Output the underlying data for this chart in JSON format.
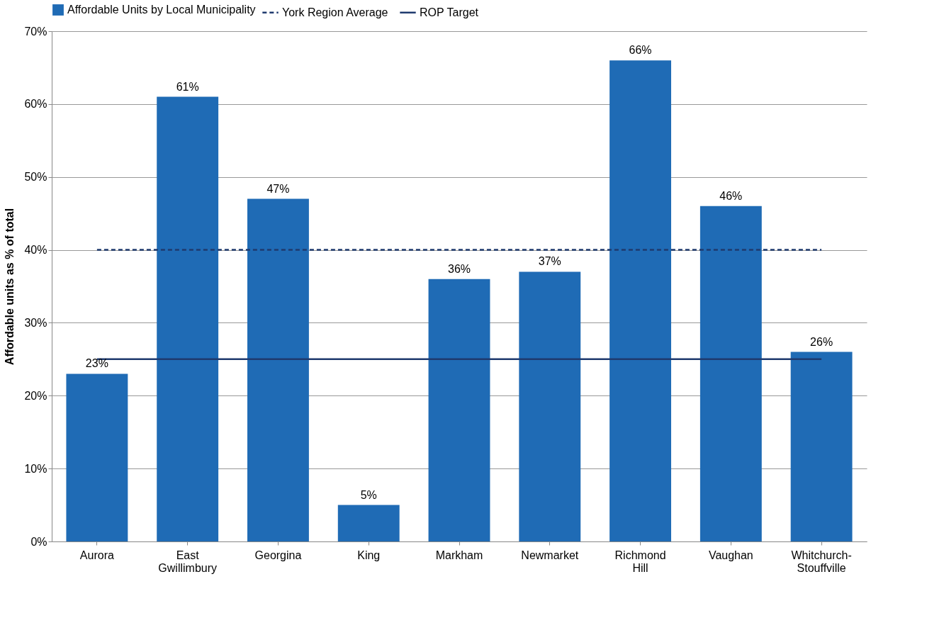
{
  "chart_data": {
    "type": "bar",
    "ylabel": "Affordable units as % of total",
    "categories": [
      "Aurora",
      "East Gwillimbury",
      "Georgina",
      "King",
      "Markham",
      "Newmarket",
      "Richmond Hill",
      "Vaughan",
      "Whitchurch-Stouffville"
    ],
    "series": [
      {
        "name": "Affordable Units by Local Municipality",
        "color": "#1f6bb5",
        "values": [
          23,
          61,
          47,
          5,
          36,
          37,
          66,
          46,
          26
        ],
        "value_labels": [
          "23%",
          "61%",
          "47%",
          "5%",
          "36%",
          "37%",
          "66%",
          "46%",
          "26%"
        ]
      }
    ],
    "ref_lines": [
      {
        "axis": "y",
        "value": 40,
        "label": "York Region Average",
        "color": "#1f3a6e",
        "line_style": "dashed"
      },
      {
        "axis": "y",
        "value": 25,
        "label": "ROP Target",
        "color": "#1f3a6e",
        "line_style": "solid"
      }
    ],
    "ylim": [
      0,
      70
    ],
    "yticks": [
      {
        "value": 0,
        "label": "0%"
      },
      {
        "value": 10,
        "label": "10%"
      },
      {
        "value": 20,
        "label": "20%"
      },
      {
        "value": 30,
        "label": "30%"
      },
      {
        "value": 40,
        "label": "40%"
      },
      {
        "value": 50,
        "label": "50%"
      },
      {
        "value": 60,
        "label": "60%"
      },
      {
        "value": 70,
        "label": "70%"
      }
    ],
    "grid": "y",
    "legend": "top"
  }
}
